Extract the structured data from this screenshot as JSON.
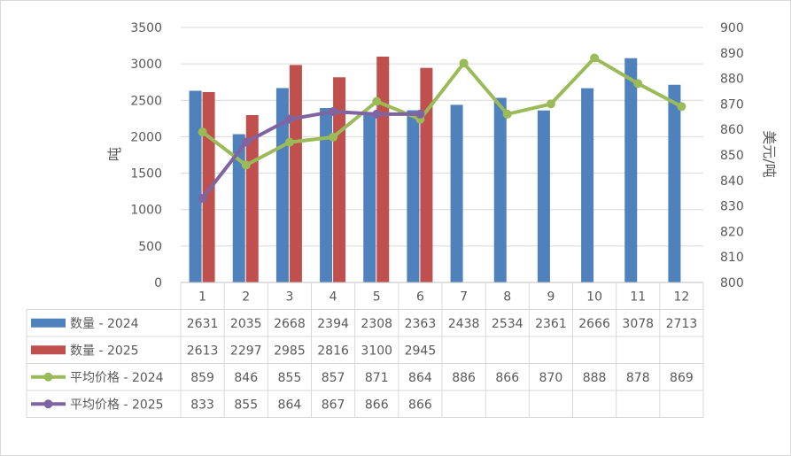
{
  "chart_data": {
    "type": "bar",
    "categories": [
      "1",
      "2",
      "3",
      "4",
      "5",
      "6",
      "7",
      "8",
      "9",
      "10",
      "11",
      "12"
    ],
    "series": [
      {
        "name": "数量 - 2024",
        "type": "bar",
        "axis": "left",
        "color": "#4F81BD",
        "values": [
          2631,
          2035,
          2668,
          2394,
          2308,
          2363,
          2438,
          2534,
          2361,
          2666,
          3078,
          2713
        ]
      },
      {
        "name": "数量 - 2025",
        "type": "bar",
        "axis": "left",
        "color": "#C0504D",
        "values": [
          2613,
          2297,
          2985,
          2816,
          3100,
          2945,
          null,
          null,
          null,
          null,
          null,
          null
        ]
      },
      {
        "name": "平均价格 - 2024",
        "type": "line",
        "axis": "right",
        "color": "#9BBB59",
        "values": [
          859,
          846,
          855,
          857,
          871,
          864,
          886,
          866,
          870,
          888,
          878,
          869
        ]
      },
      {
        "name": "平均价格 - 2025",
        "type": "line",
        "axis": "right",
        "color": "#8064A2",
        "values": [
          833,
          855,
          864,
          867,
          866,
          866,
          null,
          null,
          null,
          null,
          null,
          null
        ]
      }
    ],
    "ylabel": "吨",
    "y2label": "美元/吨",
    "ylim": [
      0,
      3500
    ],
    "y2lim": [
      800,
      900
    ],
    "yticks": [
      "0",
      "500",
      "1000",
      "1500",
      "2000",
      "2500",
      "3000",
      "3500"
    ],
    "y2ticks": [
      "800",
      "810",
      "820",
      "830",
      "840",
      "850",
      "860",
      "870",
      "880",
      "890",
      "900"
    ],
    "grid": true,
    "legend": "data-table"
  }
}
